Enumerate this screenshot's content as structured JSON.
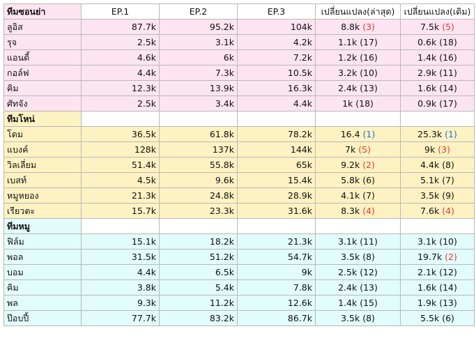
{
  "colors": {
    "team1_bg": "#fde4f1",
    "team2_bg": "#fff2c2",
    "team3_bg": "#e2fbfb",
    "rank_red": "#e53935",
    "rank_blue": "#1e6fd9"
  },
  "headers": [
    "EP.1",
    "EP.2",
    "EP.3",
    "เปลี่ยนแปลง(ล่าสุด)",
    "เปลี่ยนแปลง(เดิม)"
  ],
  "teams": [
    {
      "name": "ทีมซอนย่า",
      "rows": [
        {
          "name": "ลูอิส",
          "ep1": "87.7k",
          "ep2": "95.2k",
          "ep3": "104k",
          "c1": "8.8k",
          "c1r": "(3)",
          "c1c": "red",
          "c2": "7.5k",
          "c2r": "(5)",
          "c2c": "red"
        },
        {
          "name": "รุจ",
          "ep1": "2.5k",
          "ep2": "3.1k",
          "ep3": "4.2k",
          "c1": "1.1k",
          "c1r": "(17)",
          "c1c": "",
          "c2": "0.6k",
          "c2r": "(18)",
          "c2c": ""
        },
        {
          "name": "แอนดี้",
          "ep1": "4.6k",
          "ep2": "6k",
          "ep3": "7.2k",
          "c1": "1.2k",
          "c1r": "(16)",
          "c1c": "",
          "c2": "1.4k",
          "c2r": "(16)",
          "c2c": ""
        },
        {
          "name": "กอล์ฟ",
          "ep1": "4.4k",
          "ep2": "7.3k",
          "ep3": "10.5k",
          "c1": "3.2k",
          "c1r": "(10)",
          "c1c": "",
          "c2": "2.9k",
          "c2r": "(11)",
          "c2c": ""
        },
        {
          "name": "คิม",
          "ep1": "12.3k",
          "ep2": "13.9k",
          "ep3": "16.3k",
          "c1": "2.4k",
          "c1r": "(13)",
          "c1c": "",
          "c2": "1.6k",
          "c2r": "(14)",
          "c2c": ""
        },
        {
          "name": "ศัทจัง",
          "ep1": "2.5k",
          "ep2": "3.4k",
          "ep3": "4.4k",
          "c1": "1k",
          "c1r": "(18)",
          "c1c": "",
          "c2": "0.9k",
          "c2r": "(17)",
          "c2c": ""
        }
      ]
    },
    {
      "name": "ทีมโหน่",
      "rows": [
        {
          "name": "โดม",
          "ep1": "36.5k",
          "ep2": "61.8k",
          "ep3": "78.2k",
          "c1": "16.4",
          "c1r": "(1)",
          "c1c": "blue",
          "c2": "25.3k",
          "c2r": "(1)",
          "c2c": "blue"
        },
        {
          "name": "แบงค์",
          "ep1": "128k",
          "ep2": "137k",
          "ep3": "144k",
          "c1": "7k",
          "c1r": "(5)",
          "c1c": "red",
          "c2": "9k",
          "c2r": "(3)",
          "c2c": "red"
        },
        {
          "name": "วิลเลี่ยม",
          "ep1": "51.4k",
          "ep2": "55.8k",
          "ep3": "65k",
          "c1": "9.2k",
          "c1r": "(2)",
          "c1c": "red",
          "c2": "4.4k",
          "c2r": "(8)",
          "c2c": ""
        },
        {
          "name": "เบสท์",
          "ep1": "4.5k",
          "ep2": "9.6k",
          "ep3": "15.4k",
          "c1": "5.8k",
          "c1r": "(6)",
          "c1c": "",
          "c2": "5.1k",
          "c2r": "(7)",
          "c2c": ""
        },
        {
          "name": "หมูหยอง",
          "ep1": "21.3k",
          "ep2": "24.8k",
          "ep3": "28.9k",
          "c1": "4.1k",
          "c1r": "(7)",
          "c1c": "",
          "c2": "3.5k",
          "c2r": "(9)",
          "c2c": ""
        },
        {
          "name": "เรียวตะ",
          "ep1": "15.7k",
          "ep2": "23.3k",
          "ep3": "31.6k",
          "c1": "8.3k",
          "c1r": "(4)",
          "c1c": "red",
          "c2": "7.6k",
          "c2r": "(4)",
          "c2c": "red"
        }
      ]
    },
    {
      "name": "ทีมหมู",
      "rows": [
        {
          "name": "ฟิล์ม",
          "ep1": "15.1k",
          "ep2": "18.2k",
          "ep3": "21.3k",
          "c1": "3.1k",
          "c1r": "(11)",
          "c1c": "",
          "c2": "3.1k",
          "c2r": "(10)",
          "c2c": ""
        },
        {
          "name": "พอล",
          "ep1": "31.5k",
          "ep2": "51.2k",
          "ep3": "54.7k",
          "c1": "3.5k",
          "c1r": "(8)",
          "c1c": "",
          "c2": "19.7k",
          "c2r": "(2)",
          "c2c": "red"
        },
        {
          "name": "บอม",
          "ep1": "4.4k",
          "ep2": "6.5k",
          "ep3": "9k",
          "c1": "2.5k",
          "c1r": "(12)",
          "c1c": "",
          "c2": "2.1k",
          "c2r": "(12)",
          "c2c": ""
        },
        {
          "name": "คิม",
          "ep1": "3.8k",
          "ep2": "5.4k",
          "ep3": "7.8k",
          "c1": "2.4k",
          "c1r": "(13)",
          "c1c": "",
          "c2": "1.6k",
          "c2r": "(14)",
          "c2c": ""
        },
        {
          "name": "พล",
          "ep1": "9.3k",
          "ep2": "11.2k",
          "ep3": "12.6k",
          "c1": "1.4k",
          "c1r": "(15)",
          "c1c": "",
          "c2": "1.9k",
          "c2r": "(13)",
          "c2c": ""
        },
        {
          "name": "ป๊อบปี้",
          "ep1": "77.7k",
          "ep2": "83.2k",
          "ep3": "86.7k",
          "c1": "3.5k",
          "c1r": "(8)",
          "c1c": "",
          "c2": "5.5k",
          "c2r": "(6)",
          "c2c": ""
        }
      ]
    }
  ]
}
